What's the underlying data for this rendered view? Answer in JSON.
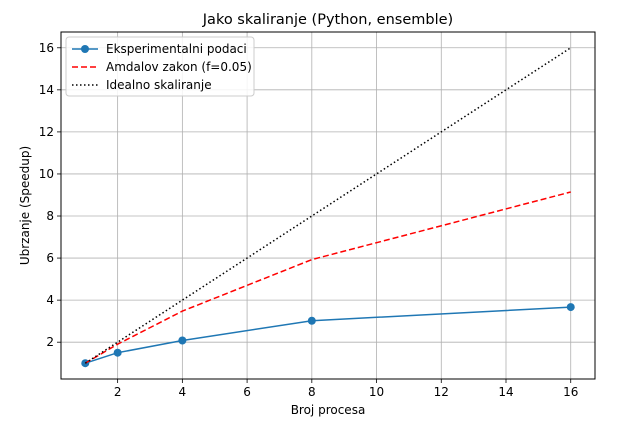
{
  "chart_data": {
    "type": "line",
    "title": "Jako skaliranje (Python, ensemble)",
    "xlabel": "Broj procesa",
    "ylabel": "Ubrzanje (Speedup)",
    "xlim": [
      0.25,
      16.75
    ],
    "ylim": [
      0.25,
      16.75
    ],
    "xticks": [
      2,
      4,
      6,
      8,
      10,
      12,
      14,
      16
    ],
    "yticks": [
      2,
      4,
      6,
      8,
      10,
      12,
      14,
      16
    ],
    "grid": true,
    "legend_position": "top-left",
    "series": [
      {
        "name": "Eksperimentalni podaci",
        "style": "solid",
        "marker": "circle",
        "color": "#1f77b4",
        "x": [
          1,
          2,
          4,
          8,
          16
        ],
        "y": [
          1.0,
          1.5,
          2.08,
          3.02,
          3.67
        ]
      },
      {
        "name": "Amdalov zakon (f=0.05)",
        "style": "dashed",
        "color": "#ff0000",
        "x": [
          1,
          2,
          4,
          8,
          16
        ],
        "y": [
          1.0,
          1.905,
          3.478,
          5.926,
          9.143
        ]
      },
      {
        "name": "Idealno skaliranje",
        "style": "dotted",
        "color": "#000000",
        "x": [
          1,
          2,
          4,
          8,
          16
        ],
        "y": [
          1,
          2,
          4,
          8,
          16
        ]
      }
    ]
  }
}
